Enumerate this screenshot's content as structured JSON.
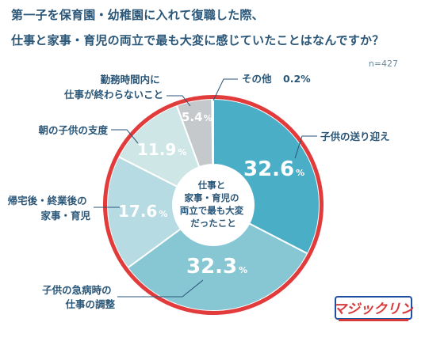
{
  "title": {
    "line1": "第一子を保育園・幼稚園に入れて復職した際、",
    "line2": "仕事と家事・育児の両立で最も大変に感じていたことはなんですか？"
  },
  "sample_size": "n=427",
  "brand": "マジックリン",
  "center_label": [
    "仕事と",
    "家事・育児の",
    "両立で最も大変",
    "だったこと"
  ],
  "chart_data": {
    "type": "pie",
    "title": "第一子を保育園・幼稚園に入れて復職した際、仕事と家事・育児の両立で最も大変に感じていたことはなんですか？",
    "unit": "%",
    "slices": [
      {
        "label": "子供の送り迎え",
        "value": 32.6,
        "color": "#4aaec6"
      },
      {
        "label": "子供の急病時の仕事の調整",
        "value": 32.3,
        "color": "#86c7d3"
      },
      {
        "label": "帰宅後・終業後の家事・育児",
        "value": 17.6,
        "color": "#b7dbe3"
      },
      {
        "label": "朝の子供の支度",
        "value": 11.9,
        "color": "#cfe6e6"
      },
      {
        "label": "勤務時間内に仕事が終わらないこと",
        "value": 5.4,
        "color": "#c5c9cb"
      },
      {
        "label": "その他",
        "value": 0.2,
        "color": "#e3e6e8"
      }
    ],
    "ring_color": "#e23b3b"
  },
  "labels": {
    "sougei": "子供の送り迎え",
    "kyubyo": [
      "子供の急病時の",
      "仕事の調整"
    ],
    "kitaku": [
      "帰宅後・終業後の",
      "家事・育児"
    ],
    "asa": "朝の子供の支度",
    "kinmu": [
      "勤務時間内に",
      "仕事が終わらないこと"
    ],
    "sonota": "その他",
    "sonota_value": "0.2%"
  },
  "values_text": {
    "v1": "32.6",
    "v2": "32.3",
    "v3": "17.6",
    "v4": "11.9",
    "v5": "5.4",
    "unit": "%"
  }
}
